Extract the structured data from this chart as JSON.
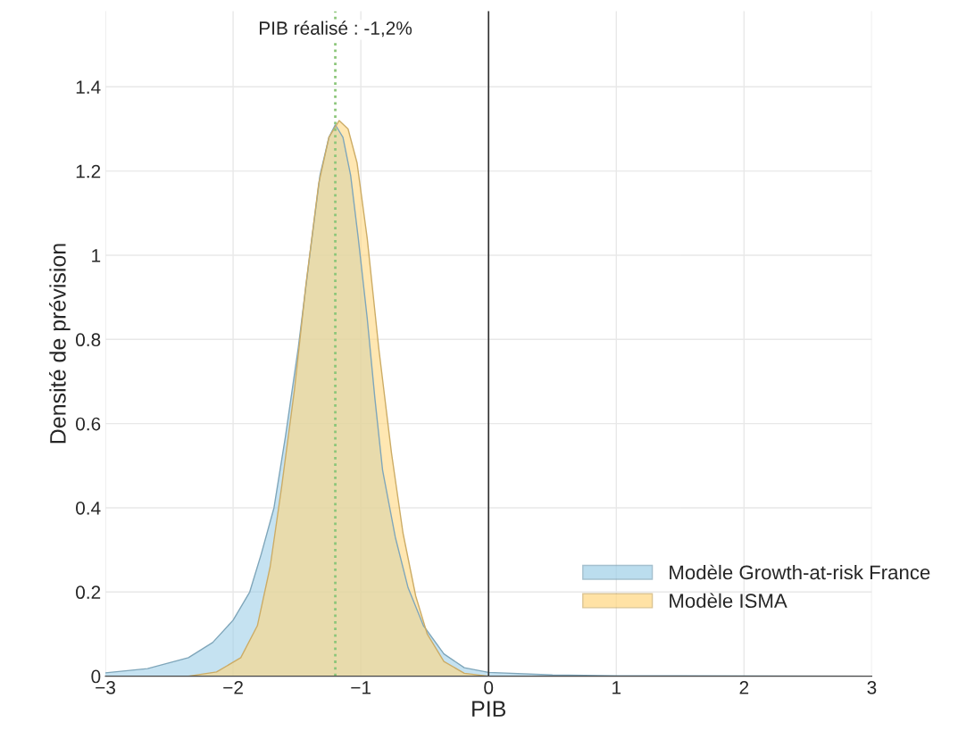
{
  "chart_data": {
    "type": "area",
    "xlabel": "PIB",
    "ylabel": "Densité de prévision",
    "xlim": [
      -3,
      3
    ],
    "ylim": [
      0,
      1.58
    ],
    "xticks": [
      {
        "value": -3,
        "label": "−3"
      },
      {
        "value": -2,
        "label": "−2"
      },
      {
        "value": -1,
        "label": "−1"
      },
      0,
      1,
      2,
      3
    ],
    "yticks": [
      0,
      0.2,
      0.4,
      0.6,
      0.8,
      1,
      1.2,
      1.4
    ],
    "grid": true,
    "legend": "bottom right",
    "series": [
      {
        "name": "Modèle Growth-at-risk France",
        "color": "#9fcfe8",
        "x": [
          -3,
          -2.67,
          -2.35,
          -2.16,
          -2.0,
          -1.87,
          -1.78,
          -1.68,
          -1.59,
          -1.49,
          -1.4,
          -1.32,
          -1.25,
          -1.2,
          -1.14,
          -1.08,
          -1.02,
          -0.95,
          -0.89,
          -0.83,
          -0.73,
          -0.63,
          -0.51,
          -0.35,
          -0.19,
          0,
          0.5,
          1,
          3
        ],
        "values": [
          0.008,
          0.018,
          0.044,
          0.08,
          0.133,
          0.2,
          0.29,
          0.4,
          0.57,
          0.78,
          1.0,
          1.19,
          1.28,
          1.31,
          1.28,
          1.19,
          1.04,
          0.85,
          0.66,
          0.49,
          0.33,
          0.21,
          0.12,
          0.053,
          0.02,
          0.009,
          0.003,
          0.001,
          0
        ]
      },
      {
        "name": "Modèle ISMA",
        "color": "#ffd77f",
        "x": [
          -3,
          -2.35,
          -2.13,
          -1.94,
          -1.81,
          -1.71,
          -1.62,
          -1.52,
          -1.43,
          -1.33,
          -1.25,
          -1.17,
          -1.1,
          -1.03,
          -0.95,
          -0.86,
          -0.76,
          -0.67,
          -0.57,
          -0.48,
          -0.35,
          -0.19,
          0,
          3
        ],
        "values": [
          0,
          0,
          0.01,
          0.044,
          0.12,
          0.26,
          0.45,
          0.68,
          0.93,
          1.17,
          1.28,
          1.32,
          1.3,
          1.22,
          1.04,
          0.78,
          0.53,
          0.34,
          0.19,
          0.1,
          0.035,
          0.007,
          0,
          0
        ]
      }
    ],
    "ref_lines": [
      {
        "axis": "x",
        "value": -1.2,
        "label": "PIB réalisé : -1,2%",
        "color": "#8cc67a",
        "line_style": "dotted"
      },
      {
        "axis": "x",
        "value": 0,
        "color": "#333333",
        "line_style": "solid"
      }
    ]
  }
}
